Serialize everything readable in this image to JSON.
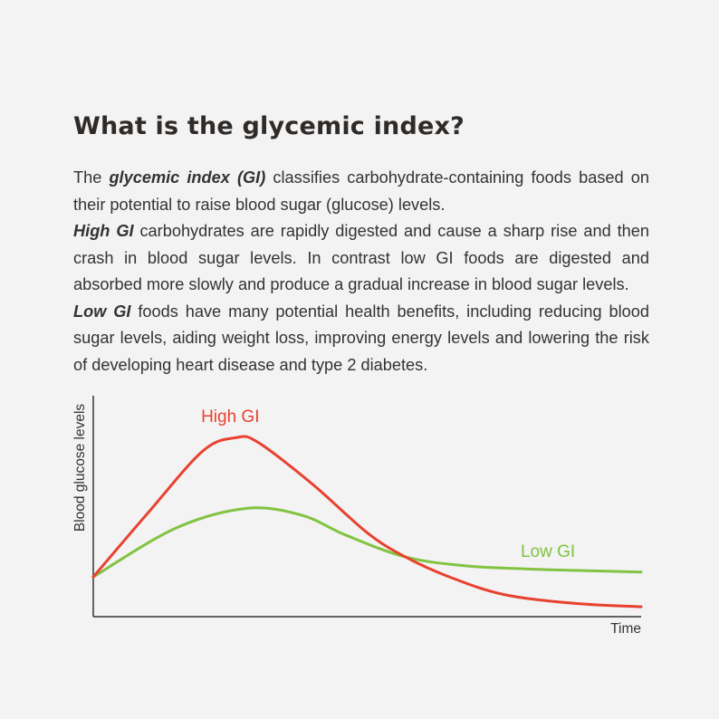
{
  "heading": "What is the glycemic index?",
  "paragraphs": [
    {
      "lead": "The ",
      "emph": "glycemic index (GI)",
      "rest": " classifies carbohydrate-containing foods based on their potential to raise blood sugar (glucose) levels."
    },
    {
      "lead": "",
      "emph": "High GI",
      "rest": " carbohydrates are rapidly digested and cause a sharp rise and then crash in blood sugar levels. In contrast low GI foods are digested and absorbed more slowly and produce a gradual increase in blood sugar levels."
    },
    {
      "lead": "",
      "emph": "Low GI",
      "rest": " foods have many potential health benefits, including reducing blood sugar levels, aiding weight loss, improving energy levels and lowering the risk of developing heart disease and type 2 diabetes."
    }
  ],
  "chart_data": {
    "type": "line",
    "xlabel": "Time",
    "ylabel": "Blood glucose levels",
    "xlim": [
      0,
      100
    ],
    "ylim": [
      0,
      100
    ],
    "grid": false,
    "series": [
      {
        "name": "High GI",
        "color": "#e8412f",
        "points": [
          [
            0,
            18
          ],
          [
            10,
            47
          ],
          [
            20,
            75
          ],
          [
            26,
            81
          ],
          [
            30,
            79
          ],
          [
            40,
            60
          ],
          [
            50,
            38
          ],
          [
            57,
            27
          ],
          [
            65,
            18
          ],
          [
            75,
            10
          ],
          [
            88,
            6
          ],
          [
            100,
            4.5
          ]
        ]
      },
      {
        "name": "Low GI",
        "color": "#82c341",
        "points": [
          [
            0,
            18
          ],
          [
            15,
            40
          ],
          [
            28,
            49
          ],
          [
            38,
            46
          ],
          [
            46,
            37
          ],
          [
            57,
            27
          ],
          [
            68,
            23
          ],
          [
            80,
            21.5
          ],
          [
            90,
            20.8
          ],
          [
            100,
            20.2
          ]
        ]
      }
    ],
    "annotations": [
      {
        "series": "High GI",
        "text": "High GI",
        "x": 25,
        "y": 91
      },
      {
        "series": "Low GI",
        "text": "Low GI",
        "x": 83,
        "y": 30
      }
    ]
  },
  "colors": {
    "background": "#f3f3f3",
    "heading": "#2f2b29",
    "text": "#333333",
    "axis": "#333333"
  }
}
